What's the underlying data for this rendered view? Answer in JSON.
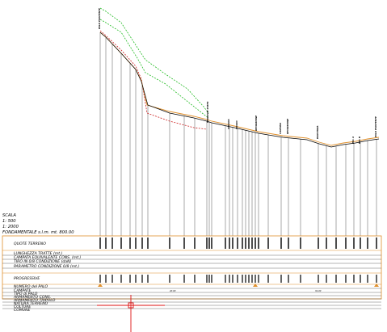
{
  "drawing": {
    "scale_title": "SCALA",
    "scale_h": "1: 500",
    "scale_v": "1: 2000",
    "datum_label": "FONDAMENTALE s.l.m. mt. 800.00"
  },
  "band_rows": [
    "QUOTE TERRENO",
    "LUNGHEZZA TRATTE (mt.)",
    "CAMPATA EQUIVALENTE CONS. (mt.)",
    "TIRO IN 0/8 CONDIZIONE (daN)",
    "PARAMETRO CONDIZIONE 0/8 (mt.)",
    "PROGRESSIVE",
    "NUMERO del PALO",
    "CAMPATE",
    "TIPO di PALO",
    "ARMAMENTO CONS.",
    "ARMAMENTO TRIPOLO",
    "NATURA TERRENO",
    "COLTURE",
    "COMUNE"
  ],
  "span_labels": [
    "20.00",
    "34.00"
  ],
  "section_labels": [
    "PALO ESISTENTE",
    "FERROVIE STATO",
    "STRADA",
    "FOSSO",
    "RECINZIONE",
    "CANTINA",
    "RECINZIONE",
    "BANCHINA",
    "BIV. A",
    "BIV. B",
    "PALO ESISTENTE"
  ],
  "colors": {
    "frame": "#e0902c",
    "terrain": "#000000",
    "conductor_low": "#cc2222",
    "conductor_high": "#22bb22",
    "cursor": "#dd1111"
  },
  "icons": [
    "pole-marker-icon",
    "crosshair-cursor-icon"
  ]
}
